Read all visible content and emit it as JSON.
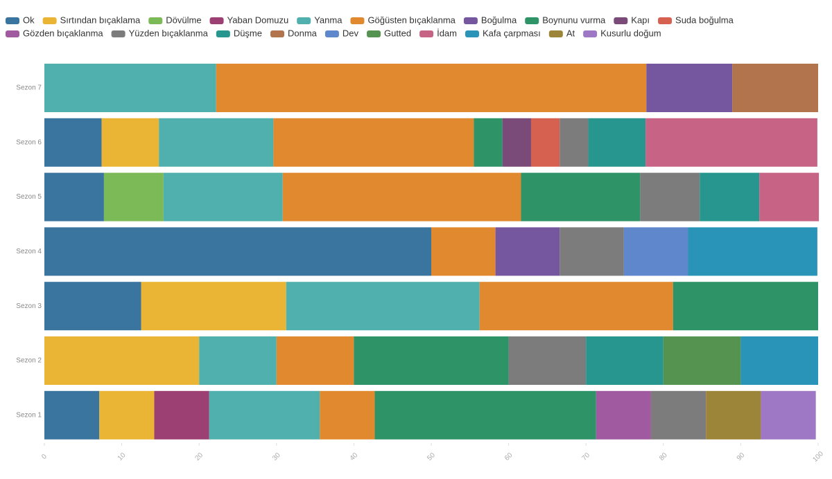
{
  "chart_data": {
    "type": "stacked-bar-horizontal",
    "categories": [
      "Sezon 7",
      "Sezon 6",
      "Sezon 5",
      "Sezon 4",
      "Sezon 3",
      "Sezon 2",
      "Sezon 1"
    ],
    "series": [
      {
        "name": "Ok",
        "color": "#3a75a0",
        "values": [
          0,
          7.4,
          7.7,
          50,
          12.5,
          0,
          7.1
        ]
      },
      {
        "name": "Sırtından bıçaklama",
        "color": "#eab535",
        "values": [
          0,
          7.4,
          0,
          0,
          18.75,
          20,
          7.1
        ]
      },
      {
        "name": "Dövülme",
        "color": "#7cb957",
        "values": [
          0,
          0,
          7.7,
          0,
          0,
          0,
          0
        ]
      },
      {
        "name": "Yaban Domuzu",
        "color": "#9c3f73",
        "values": [
          0,
          0,
          0,
          0,
          0,
          0,
          7.1
        ]
      },
      {
        "name": "Yanma",
        "color": "#4fb0ae",
        "values": [
          22.2,
          14.8,
          15.4,
          0,
          25,
          10,
          14.3
        ]
      },
      {
        "name": "Göğüsten bıçaklanma",
        "color": "#e0892e",
        "values": [
          55.6,
          25.9,
          30.8,
          8.3,
          25,
          10,
          7.1
        ]
      },
      {
        "name": "Boğulma",
        "color": "#7557a0",
        "values": [
          11.1,
          0,
          0,
          8.3,
          0,
          0,
          0
        ]
      },
      {
        "name": "Boynunu vurma",
        "color": "#2e9467",
        "values": [
          0,
          3.7,
          15.4,
          0,
          18.75,
          20,
          28.6
        ]
      },
      {
        "name": "Kapı",
        "color": "#7a4a78",
        "values": [
          0,
          3.7,
          0,
          0,
          0,
          0,
          0
        ]
      },
      {
        "name": "Suda boğulma",
        "color": "#d76150",
        "values": [
          0,
          3.7,
          0,
          0,
          0,
          0,
          0
        ]
      },
      {
        "name": "Gözden bıçaklanma",
        "color": "#a05aa0",
        "values": [
          0,
          0,
          0,
          0,
          0,
          0,
          7.1
        ]
      },
      {
        "name": "Yüzden bıçaklanma",
        "color": "#7c7c7c",
        "values": [
          0,
          3.7,
          7.7,
          8.3,
          0,
          10,
          7.1
        ]
      },
      {
        "name": "Düşme",
        "color": "#26968f",
        "values": [
          0,
          7.4,
          7.7,
          0,
          0,
          10,
          0
        ]
      },
      {
        "name": "Donma",
        "color": "#b2744d",
        "values": [
          11.1,
          0,
          0,
          0,
          0,
          0,
          0
        ]
      },
      {
        "name": "Dev",
        "color": "#5f87cc",
        "values": [
          0,
          0,
          0,
          8.3,
          0,
          0,
          0
        ]
      },
      {
        "name": "Gutted",
        "color": "#559450",
        "values": [
          0,
          0,
          0,
          0,
          0,
          10,
          0
        ]
      },
      {
        "name": "İdam",
        "color": "#c76486",
        "values": [
          0,
          22.2,
          7.7,
          0,
          0,
          0,
          0
        ]
      },
      {
        "name": "Kafa çarpması",
        "color": "#2a93b8",
        "values": [
          0,
          0,
          0,
          16.7,
          0,
          10,
          0
        ]
      },
      {
        "name": "At",
        "color": "#9c8438",
        "values": [
          0,
          0,
          0,
          0,
          0,
          0,
          7.1
        ]
      },
      {
        "name": "Kusurlu doğum",
        "color": "#9e78c4",
        "values": [
          0,
          0,
          0,
          0,
          0,
          0,
          7.1
        ]
      }
    ],
    "xlim": [
      0,
      100
    ],
    "xticks": [
      0,
      10,
      20,
      30,
      40,
      50,
      60,
      70,
      80,
      90,
      100
    ],
    "grid": false
  }
}
